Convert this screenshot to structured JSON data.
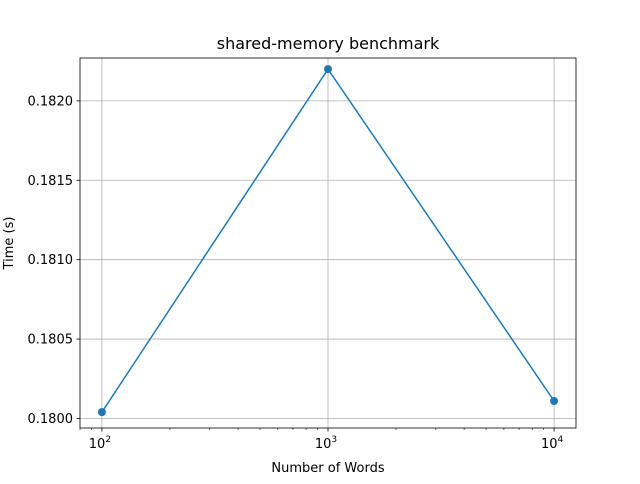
{
  "chart_data": {
    "type": "line",
    "title": "shared-memory benchmark",
    "xlabel": "Number of Words",
    "ylabel": "Time (s)",
    "x_scale": "log",
    "xlim": [
      80,
      12500
    ],
    "ylim": [
      0.17994,
      0.18227
    ],
    "x": [
      100,
      1000,
      10000
    ],
    "series": [
      {
        "name": "",
        "values": [
          0.18004,
          0.1822,
          0.18011
        ],
        "color": "#1f77b4",
        "marker": "circle"
      }
    ],
    "x_ticks": [
      {
        "value": 100,
        "base": "10",
        "exp": "2"
      },
      {
        "value": 1000,
        "base": "10",
        "exp": "3"
      },
      {
        "value": 10000,
        "base": "10",
        "exp": "4"
      }
    ],
    "y_ticks": [
      {
        "value": 0.18,
        "label": "0.1800"
      },
      {
        "value": 0.1805,
        "label": "0.1805"
      },
      {
        "value": 0.181,
        "label": "0.1810"
      },
      {
        "value": 0.1815,
        "label": "0.1815"
      },
      {
        "value": 0.182,
        "label": "0.1820"
      }
    ],
    "grid": true,
    "legend": "none"
  }
}
